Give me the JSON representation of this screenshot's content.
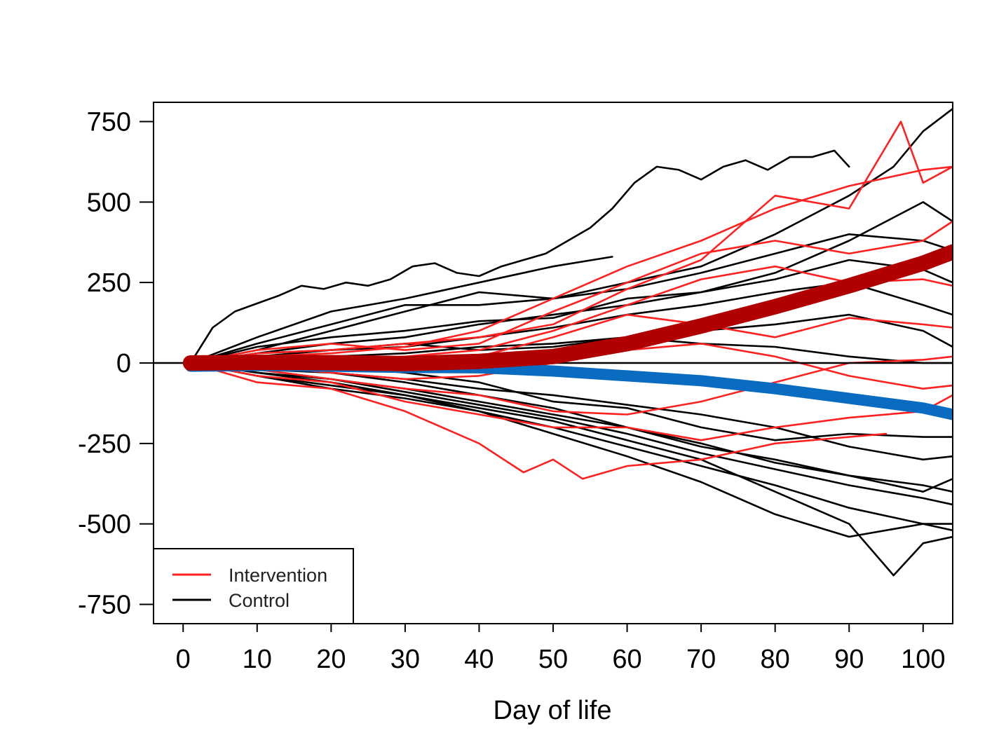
{
  "chart_data": {
    "type": "line",
    "title": "",
    "xlabel": "Day of life",
    "ylabel": "",
    "xlim": [
      -4,
      104
    ],
    "ylim": [
      -810,
      810
    ],
    "x_ticks": [
      0,
      10,
      20,
      30,
      40,
      50,
      60,
      70,
      80,
      90,
      100
    ],
    "y_ticks": [
      750,
      500,
      250,
      0,
      -250,
      -500,
      -750
    ],
    "reference_line_y": 0,
    "grid": false,
    "legend": {
      "position": "bottom-left",
      "entries": [
        {
          "label": "Intervention",
          "color": "#ff2020"
        },
        {
          "label": "Control",
          "color": "#000000"
        }
      ]
    },
    "trend_lines": [
      {
        "color": "#b00000",
        "x": [
          1,
          10,
          20,
          30,
          40,
          50,
          60,
          70,
          80,
          90,
          100,
          104
        ],
        "values": [
          0,
          2,
          1,
          -2,
          5,
          20,
          60,
          115,
          175,
          240,
          310,
          345
        ]
      },
      {
        "color": "#0a6cc0",
        "x": [
          1,
          10,
          20,
          30,
          40,
          50,
          60,
          70,
          80,
          90,
          100,
          104
        ],
        "values": [
          -10,
          -8,
          -10,
          -14,
          -15,
          -25,
          -40,
          -55,
          -80,
          -110,
          -140,
          -160
        ]
      }
    ],
    "series_individual": [
      {
        "group": "Control",
        "x": [
          1,
          4,
          7,
          10,
          13,
          16,
          19,
          22,
          25,
          28,
          31,
          34,
          37,
          40,
          43,
          46,
          49,
          52,
          55,
          58,
          61,
          64,
          67,
          70,
          73,
          76,
          79,
          82,
          85,
          88,
          90
        ],
        "values": [
          0,
          110,
          160,
          185,
          210,
          240,
          230,
          250,
          240,
          260,
          300,
          310,
          280,
          270,
          300,
          320,
          340,
          380,
          420,
          480,
          560,
          610,
          600,
          570,
          610,
          630,
          600,
          640,
          640,
          660,
          610
        ]
      },
      {
        "group": "Control",
        "x": [
          1,
          10,
          20,
          30,
          40,
          50,
          60,
          70,
          80,
          90,
          96,
          100,
          104
        ],
        "values": [
          0,
          60,
          120,
          180,
          180,
          200,
          250,
          300,
          400,
          520,
          610,
          720,
          790
        ]
      },
      {
        "group": "Control",
        "x": [
          1,
          10,
          20,
          30,
          40,
          50,
          60,
          70,
          80,
          90,
          100,
          104
        ],
        "values": [
          0,
          50,
          80,
          100,
          130,
          140,
          200,
          220,
          280,
          380,
          500,
          440
        ]
      },
      {
        "group": "Control",
        "x": [
          1,
          10,
          20,
          30,
          40,
          50,
          58
        ],
        "values": [
          0,
          80,
          160,
          200,
          250,
          300,
          330
        ]
      },
      {
        "group": "Control",
        "x": [
          1,
          10,
          20,
          30,
          40,
          50,
          60,
          70,
          80,
          90,
          100,
          104
        ],
        "values": [
          0,
          40,
          100,
          160,
          220,
          200,
          230,
          280,
          340,
          400,
          380,
          350
        ]
      },
      {
        "group": "Control",
        "x": [
          1,
          10,
          20,
          30,
          40,
          50,
          60,
          70,
          80,
          90,
          100,
          104
        ],
        "values": [
          0,
          30,
          60,
          80,
          120,
          150,
          180,
          220,
          260,
          320,
          290,
          250
        ]
      },
      {
        "group": "Control",
        "x": [
          1,
          10,
          20,
          30,
          40,
          50,
          60,
          70,
          80,
          90,
          100,
          104
        ],
        "values": [
          0,
          20,
          40,
          50,
          80,
          110,
          150,
          180,
          220,
          250,
          180,
          150
        ]
      },
      {
        "group": "Control",
        "x": [
          1,
          10,
          20,
          30,
          40,
          50,
          60,
          70,
          80,
          90,
          100,
          104
        ],
        "values": [
          0,
          10,
          20,
          30,
          50,
          60,
          80,
          100,
          120,
          150,
          100,
          50
        ]
      },
      {
        "group": "Control",
        "x": [
          1,
          10,
          20,
          30,
          40,
          50,
          60,
          70,
          80,
          90,
          100,
          104
        ],
        "values": [
          0,
          30,
          40,
          60,
          40,
          50,
          80,
          60,
          50,
          20,
          0,
          0
        ]
      },
      {
        "group": "Control",
        "x": [
          1,
          10,
          20,
          30,
          40,
          50,
          60,
          70,
          80,
          90,
          100,
          104
        ],
        "values": [
          0,
          -20,
          -30,
          -50,
          -80,
          -100,
          -130,
          -160,
          -200,
          -260,
          -300,
          -290
        ]
      },
      {
        "group": "Control",
        "x": [
          1,
          10,
          20,
          30,
          40,
          50,
          60,
          70,
          80,
          90,
          100,
          104
        ],
        "values": [
          0,
          -30,
          -50,
          -80,
          -120,
          -160,
          -200,
          -250,
          -310,
          -350,
          -380,
          -400
        ]
      },
      {
        "group": "Control",
        "x": [
          1,
          10,
          20,
          30,
          40,
          50,
          60,
          70,
          80,
          90,
          100,
          104
        ],
        "values": [
          0,
          -40,
          -70,
          -100,
          -150,
          -200,
          -260,
          -320,
          -380,
          -450,
          -500,
          -520
        ]
      },
      {
        "group": "Control",
        "x": [
          1,
          10,
          20,
          30,
          40,
          50,
          60,
          70,
          80,
          90,
          96,
          100,
          104
        ],
        "values": [
          0,
          -30,
          -60,
          -100,
          -140,
          -180,
          -240,
          -300,
          -400,
          -500,
          -660,
          -560,
          -540
        ]
      },
      {
        "group": "Control",
        "x": [
          1,
          10,
          20,
          30,
          40,
          50,
          60,
          70,
          80,
          90,
          100,
          104
        ],
        "values": [
          0,
          -20,
          -50,
          -90,
          -130,
          -170,
          -220,
          -280,
          -330,
          -380,
          -420,
          -440
        ]
      },
      {
        "group": "Control",
        "x": [
          1,
          10,
          20,
          30,
          40,
          50,
          60,
          70,
          80,
          90,
          100,
          104
        ],
        "values": [
          0,
          -10,
          -30,
          -60,
          -100,
          -140,
          -200,
          -260,
          -300,
          -350,
          -400,
          -360
        ]
      },
      {
        "group": "Control",
        "x": [
          1,
          10,
          20,
          30,
          40,
          50,
          60,
          70,
          80,
          90,
          100,
          104
        ],
        "values": [
          0,
          -40,
          -80,
          -110,
          -150,
          -220,
          -290,
          -370,
          -470,
          -540,
          -500,
          -500
        ]
      },
      {
        "group": "Control",
        "x": [
          1,
          10,
          20,
          30,
          40,
          50,
          60,
          70,
          80,
          90,
          100,
          104
        ],
        "values": [
          0,
          10,
          -10,
          -30,
          -60,
          -120,
          -140,
          -200,
          -240,
          -220,
          -230,
          -230
        ]
      },
      {
        "group": "Intervention",
        "x": [
          1,
          10,
          20,
          30,
          40,
          50,
          60,
          70,
          80,
          90,
          97,
          100,
          104
        ],
        "values": [
          0,
          30,
          40,
          60,
          80,
          120,
          230,
          320,
          520,
          480,
          750,
          560,
          610
        ]
      },
      {
        "group": "Intervention",
        "x": [
          1,
          10,
          20,
          30,
          40,
          50,
          60,
          70,
          80,
          90,
          100,
          104
        ],
        "values": [
          0,
          20,
          30,
          50,
          100,
          200,
          300,
          380,
          480,
          550,
          600,
          610
        ]
      },
      {
        "group": "Intervention",
        "x": [
          1,
          10,
          20,
          30,
          40,
          50,
          60,
          70,
          80,
          90,
          100,
          104
        ],
        "values": [
          0,
          40,
          60,
          40,
          60,
          160,
          250,
          340,
          380,
          340,
          380,
          440
        ]
      },
      {
        "group": "Intervention",
        "x": [
          1,
          10,
          20,
          30,
          40,
          50,
          60,
          70,
          80,
          90,
          100,
          104
        ],
        "values": [
          0,
          20,
          10,
          20,
          40,
          100,
          180,
          260,
          300,
          250,
          260,
          240
        ]
      },
      {
        "group": "Intervention",
        "x": [
          1,
          10,
          20,
          30,
          40,
          50,
          60,
          70,
          80,
          90,
          100,
          104
        ],
        "values": [
          0,
          10,
          0,
          -10,
          20,
          80,
          150,
          120,
          80,
          140,
          120,
          110
        ]
      },
      {
        "group": "Intervention",
        "x": [
          1,
          10,
          20,
          30,
          40,
          50,
          60,
          70,
          80,
          90,
          100,
          104
        ],
        "values": [
          0,
          -10,
          -30,
          -50,
          -40,
          0,
          40,
          60,
          20,
          -40,
          -80,
          -70
        ]
      },
      {
        "group": "Intervention",
        "x": [
          1,
          10,
          20,
          30,
          40,
          50,
          60,
          70,
          80,
          90,
          100,
          104
        ],
        "values": [
          0,
          -40,
          -60,
          -120,
          -160,
          -200,
          -200,
          -240,
          -200,
          -170,
          -150,
          -100
        ]
      },
      {
        "group": "Intervention",
        "x": [
          1,
          10,
          20,
          30,
          40,
          46,
          50,
          54,
          60,
          70,
          80,
          90,
          95
        ],
        "values": [
          0,
          -60,
          -80,
          -150,
          -250,
          -340,
          -300,
          -360,
          -320,
          -300,
          -250,
          -230,
          -220
        ]
      },
      {
        "group": "Intervention",
        "x": [
          1,
          10,
          20,
          30,
          40,
          50,
          60,
          70,
          80,
          90,
          100,
          104
        ],
        "values": [
          0,
          -20,
          -50,
          -80,
          -100,
          -150,
          -160,
          -120,
          -60,
          0,
          10,
          20
        ]
      }
    ]
  }
}
